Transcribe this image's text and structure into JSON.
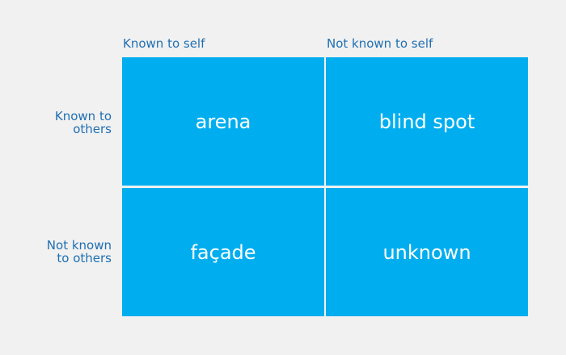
{
  "columns": [
    "Known to self",
    "Not known to self"
  ],
  "rows": [
    [
      "Known to",
      "others"
    ],
    [
      "Not known",
      "to others"
    ]
  ],
  "cells": [
    [
      "arena",
      "blind spot"
    ],
    [
      "façade",
      "unknown"
    ]
  ]
}
